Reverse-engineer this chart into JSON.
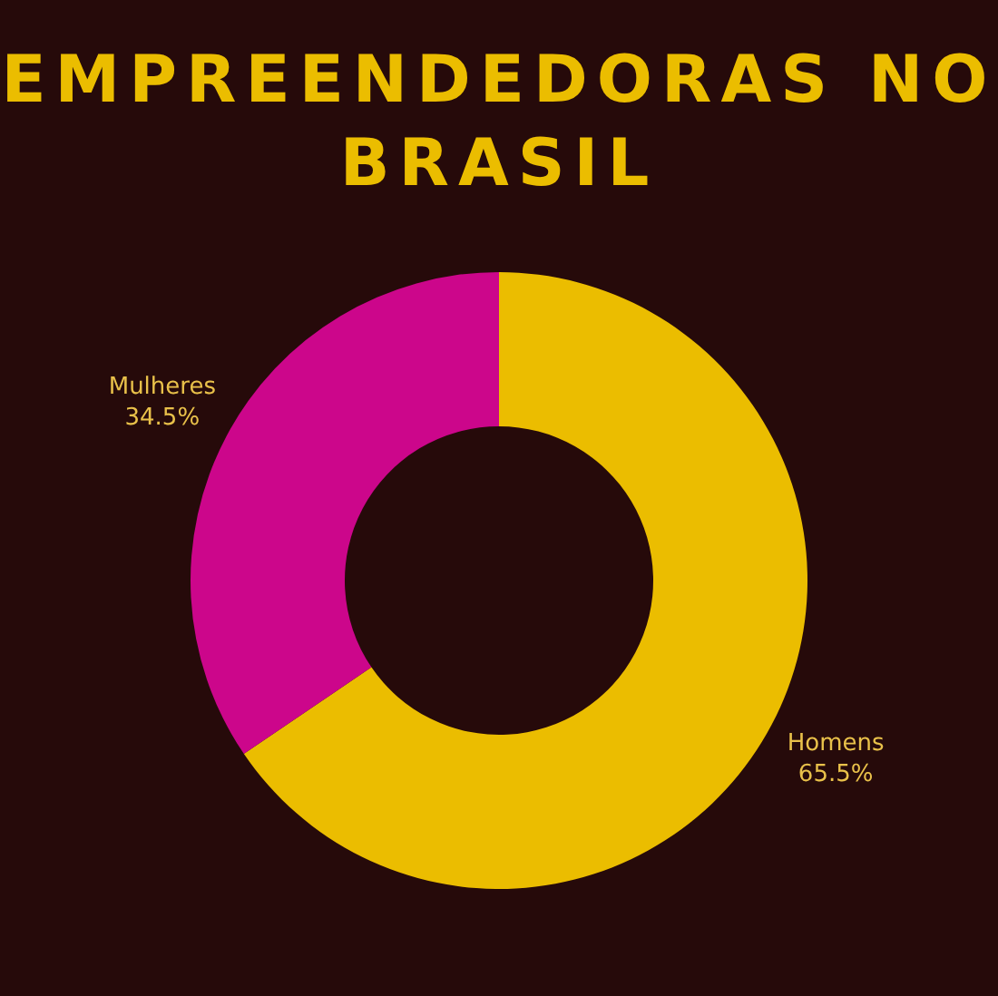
{
  "chart_data": {
    "type": "donut",
    "title": "EMPREENDEDORAS NO BRASIL",
    "categories": [
      "Homens",
      "Mulheres"
    ],
    "values": [
      65.5,
      34.5
    ],
    "colors": [
      "#ebbd00",
      "#cc068b"
    ],
    "value_labels": [
      "65.5%",
      "34.5%"
    ],
    "legend": false
  }
}
